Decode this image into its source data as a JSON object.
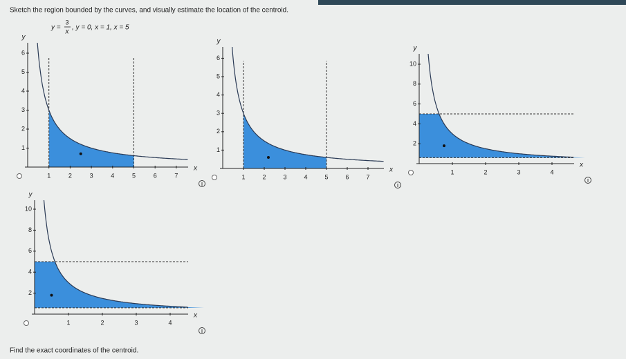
{
  "question": "Sketch the region bounded by the curves, and visually estimate the location of the centroid.",
  "equation": {
    "lhs": "y =",
    "numerator": "3",
    "denominator": "x",
    "rest": ", y = 0, x = 1, x = 5"
  },
  "graphs": [
    {
      "axis_label_x": "x",
      "axis_label_y": "y",
      "xticks": [
        1,
        2,
        3,
        4,
        5,
        6,
        7
      ],
      "yticks": [
        1,
        2,
        3,
        4,
        5,
        6
      ]
    },
    {
      "axis_label_x": "x",
      "axis_label_y": "y",
      "xticks": [
        1,
        2,
        3,
        4,
        5,
        6,
        7
      ],
      "yticks": [
        1,
        2,
        3,
        4,
        5,
        6
      ]
    },
    {
      "axis_label_x": "x",
      "axis_label_y": "y",
      "xticks": [
        1,
        2,
        3,
        4
      ],
      "yticks": [
        2,
        4,
        6,
        8,
        10
      ]
    },
    {
      "axis_label_x": "x",
      "axis_label_y": "y",
      "xticks": [
        1,
        2,
        3,
        4
      ],
      "yticks": [
        2,
        4,
        6,
        8,
        10
      ]
    }
  ],
  "footer": "Find the exact coordinates of the centroid."
}
